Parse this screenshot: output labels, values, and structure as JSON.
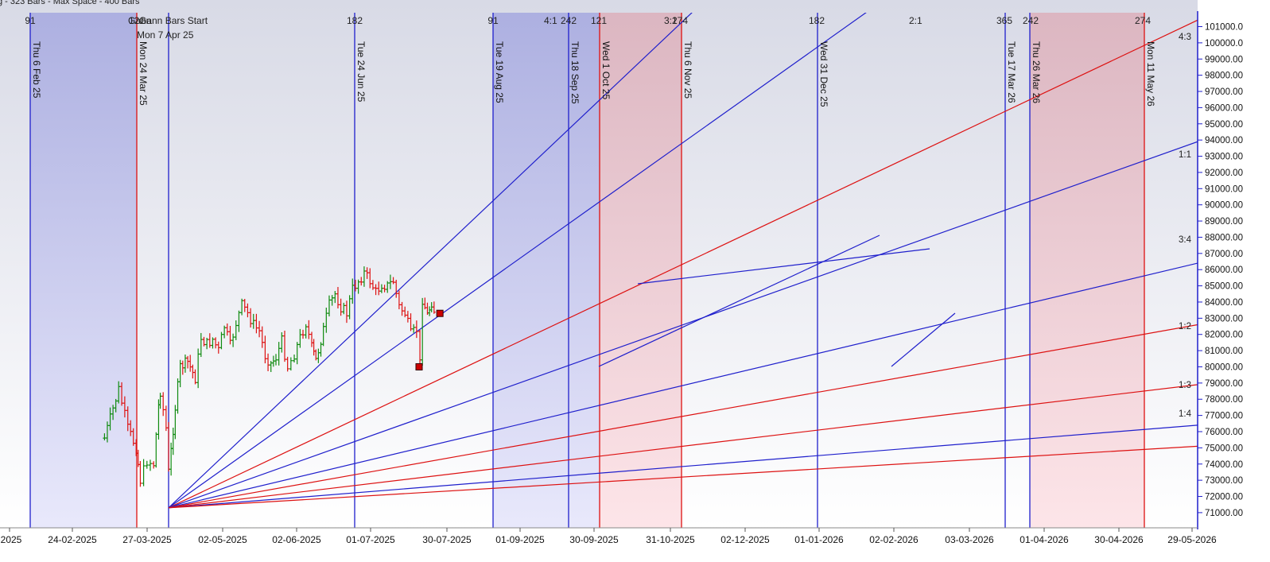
{
  "header": {
    "text": "g - 323 Bars -  Max Space - 400 Bars"
  },
  "chart_data": {
    "type": "candlestick",
    "y_axis": {
      "min": 70500,
      "max": 101500,
      "position": "right",
      "ticks": [
        101000,
        100000,
        99000,
        98000,
        97000,
        96000,
        95000,
        94000,
        93000,
        92000,
        91000,
        90000,
        89000,
        88000,
        87000,
        86000,
        85000,
        84000,
        83000,
        82000,
        81000,
        80000,
        79000,
        78000,
        77000,
        76000,
        75000,
        74000,
        73000,
        72000,
        71000
      ],
      "tick_labels": [
        "101000.0",
        "100000.0",
        "99000.00",
        "98000.00",
        "97000.00",
        "96000.00",
        "95000.00",
        "94000.00",
        "93000.00",
        "92000.00",
        "91000.00",
        "90000.00",
        "89000.00",
        "88000.00",
        "87000.00",
        "86000.00",
        "85000.00",
        "84000.00",
        "83000.00",
        "82000.00",
        "81000.00",
        "80000.00",
        "79000.00",
        "78000.00",
        "77000.00",
        "76000.00",
        "75000.00",
        "74000.00",
        "73000.00",
        "72000.00",
        "71000.00"
      ]
    },
    "x_axis": {
      "tick_labels": [
        "-2025",
        "24-02-2025",
        "27-03-2025",
        "02-05-2025",
        "02-06-2025",
        "01-07-2025",
        "30-07-2025",
        "01-09-2025",
        "30-09-2025",
        "31-10-2025",
        "02-12-2025",
        "01-01-2026",
        "02-02-2026",
        "03-03-2026",
        "01-04-2026",
        "30-04-2026",
        "29-05-2026"
      ]
    },
    "gann_start": {
      "label": "Gann Bars Start",
      "date": "Mon 7 Apr 25",
      "price": 71300
    },
    "gann_fan": [
      {
        "ratio": "4:1",
        "color": "#1f1fcc",
        "end_price": 131400,
        "label": ""
      },
      {
        "ratio": "3:1",
        "color": "#1f1fcc",
        "end_price": 116400,
        "label": ""
      },
      {
        "ratio": "2:1",
        "color": "#dd1111",
        "end_price": 101400,
        "label": ""
      },
      {
        "ratio": "4:3",
        "color": "#1f1fcc",
        "end_price": 93900,
        "label": "4:3"
      },
      {
        "ratio": "1:1",
        "color": "#1f1fcc",
        "end_price": 86400,
        "label": "1:1"
      },
      {
        "ratio": "3:4",
        "color": "#dd1111",
        "end_price": 82600,
        "label": "3:4"
      },
      {
        "ratio": "1:2",
        "color": "#dd1111",
        "end_price": 78900,
        "label": "1:2"
      },
      {
        "ratio": "1:3",
        "color": "#1f1fcc",
        "end_price": 76400,
        "label": "1:3"
      },
      {
        "ratio": "1:4",
        "color": "#dd1111",
        "end_price": 75100,
        "label": "1:4"
      }
    ],
    "time_lines": [
      {
        "date": "Thu 6 Feb 25",
        "count": "91",
        "color": "#1f1fcc"
      },
      {
        "date": "Mon 24 Mar 25",
        "count": "121",
        "color": "#dd1111"
      },
      {
        "date": "",
        "count": "",
        "color": "#1f1fcc"
      },
      {
        "date": "Tue 24 Jun 25",
        "count": "182",
        "color": "#1f1fcc"
      },
      {
        "date": "Tue 19 Aug 25",
        "count": "91",
        "color": "#1f1fcc"
      },
      {
        "date": "Thu 18 Sep 25",
        "count": "242",
        "color": "#1f1fcc"
      },
      {
        "date": "Wed 1 Oct 25",
        "count": "121",
        "color": "#dd1111"
      },
      {
        "date": "Thu 6 Nov 25",
        "count": "274",
        "color": "#dd1111"
      },
      {
        "date": "Wed 31 Dec 25",
        "count": "182",
        "color": "#1f1fcc"
      },
      {
        "date": "Tue 17 Mar 26",
        "count": "365",
        "color": "#1f1fcc"
      },
      {
        "date": "Thu 26 Mar 26",
        "count": "242",
        "color": "#1f1fcc"
      },
      {
        "date": "Mon 11 May 26",
        "count": "274",
        "color": "#dd1111"
      }
    ],
    "overlap_labels": [
      "Gann",
      "4:1",
      "3:1",
      "2:1"
    ],
    "shaded_zones": [
      {
        "from_line": 0,
        "to_line": 1,
        "tone": "blue"
      },
      {
        "from_line": 4,
        "to_line": 6,
        "tone": "blue"
      },
      {
        "from_line": 6,
        "to_line": 7,
        "tone": "red"
      },
      {
        "from_line": 10,
        "to_line": 11,
        "tone": "red"
      }
    ],
    "pivots": [
      {
        "date": "02-02-2026",
        "price": 80000,
        "color": "#cc0000"
      },
      {
        "date": "27-02-2026",
        "price": 83300,
        "color": "#cc0000"
      }
    ],
    "price_path": [
      {
        "date": "20-01-2025",
        "price": 75600
      },
      {
        "date": "06-02-2025",
        "price": 78600
      },
      {
        "date": "17-02-2025",
        "price": 76200
      },
      {
        "date": "27-02-2025",
        "price": 75000
      },
      {
        "date": "04-03-2025",
        "price": 73000
      },
      {
        "date": "12-03-2025",
        "price": 74200
      },
      {
        "date": "20-03-2025",
        "price": 74000
      },
      {
        "date": "26-03-2025",
        "price": 77600
      },
      {
        "date": "28-03-2025",
        "price": 78500
      },
      {
        "date": "04-04-2025",
        "price": 76200
      },
      {
        "date": "07-04-2025",
        "price": 73500
      },
      {
        "date": "10-04-2025",
        "price": 74800
      },
      {
        "date": "15-04-2025",
        "price": 77500
      },
      {
        "date": "21-04-2025",
        "price": 80000
      },
      {
        "date": "30-04-2025",
        "price": 80300
      },
      {
        "date": "09-05-2025",
        "price": 79300
      },
      {
        "date": "16-05-2025",
        "price": 81800
      },
      {
        "date": "23-05-2025",
        "price": 81400
      },
      {
        "date": "30-05-2025",
        "price": 81700
      },
      {
        "date": "06-06-2025",
        "price": 81000
      },
      {
        "date": "13-06-2025",
        "price": 82500
      },
      {
        "date": "20-06-2025",
        "price": 81300
      },
      {
        "date": "27-06-2025",
        "price": 82700
      },
      {
        "date": "04-07-2025",
        "price": 83800
      },
      {
        "date": "11-07-2025",
        "price": 83300
      },
      {
        "date": "18-07-2025",
        "price": 82600
      },
      {
        "date": "25-07-2025",
        "price": 82200
      },
      {
        "date": "01-08-2025",
        "price": 80700
      },
      {
        "date": "08-08-2025",
        "price": 80200
      },
      {
        "date": "14-08-2025",
        "price": 80600
      },
      {
        "date": "21-08-2025",
        "price": 81600
      },
      {
        "date": "28-08-2025",
        "price": 80000
      },
      {
        "date": "05-09-2025",
        "price": 80800
      },
      {
        "date": "12-09-2025",
        "price": 81800
      },
      {
        "date": "19-09-2025",
        "price": 82700
      },
      {
        "date": "26-09-2025",
        "price": 81200
      },
      {
        "date": "01-10-2025",
        "price": 80400
      },
      {
        "date": "10-10-2025",
        "price": 82300
      },
      {
        "date": "17-10-2025",
        "price": 83800
      },
      {
        "date": "24-10-2025",
        "price": 84500
      },
      {
        "date": "31-10-2025",
        "price": 83700
      },
      {
        "date": "07-11-2025",
        "price": 83300
      },
      {
        "date": "14-11-2025",
        "price": 84800
      },
      {
        "date": "21-11-2025",
        "price": 85300
      },
      {
        "date": "28-11-2025",
        "price": 85800
      },
      {
        "date": "05-12-2025",
        "price": 85300
      },
      {
        "date": "12-12-2025",
        "price": 84600
      },
      {
        "date": "19-12-2025",
        "price": 85100
      },
      {
        "date": "26-12-2025",
        "price": 85000
      },
      {
        "date": "02-01-2026",
        "price": 85300
      },
      {
        "date": "09-01-2026",
        "price": 83700
      },
      {
        "date": "16-01-2026",
        "price": 83300
      },
      {
        "date": "23-01-2026",
        "price": 82000
      },
      {
        "date": "30-01-2026",
        "price": 82300
      },
      {
        "date": "03-02-2026",
        "price": 80200
      },
      {
        "date": "06-02-2026",
        "price": 84200
      },
      {
        "date": "12-02-2026",
        "price": 83200
      },
      {
        "date": "17-02-2026",
        "price": 84000
      },
      {
        "date": "23-02-2026",
        "price": 83000
      }
    ],
    "grid": false,
    "legend": "none"
  }
}
